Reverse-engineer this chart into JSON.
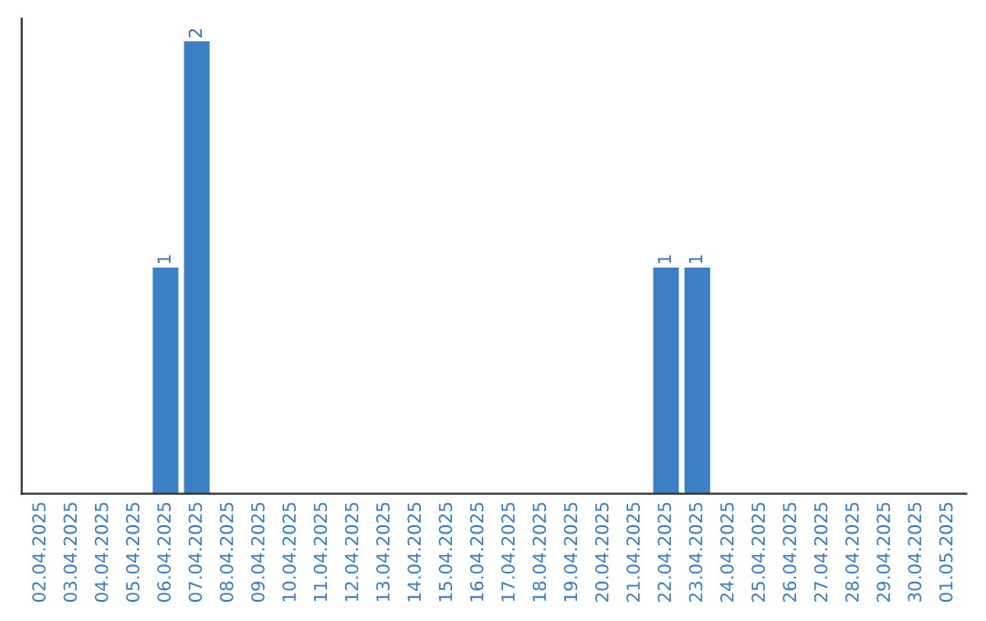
{
  "chart_data": {
    "type": "bar",
    "categories": [
      "02.04.2025",
      "03.04.2025",
      "04.04.2025",
      "05.04.2025",
      "06.04.2025",
      "07.04.2025",
      "08.04.2025",
      "09.04.2025",
      "10.04.2025",
      "11.04.2025",
      "12.04.2025",
      "13.04.2025",
      "14.04.2025",
      "15.04.2025",
      "16.04.2025",
      "17.04.2025",
      "18.04.2025",
      "19.04.2025",
      "20.04.2025",
      "21.04.2025",
      "22.04.2025",
      "23.04.2025",
      "24.04.2025",
      "25.04.2025",
      "26.04.2025",
      "27.04.2025",
      "28.04.2025",
      "29.04.2025",
      "30.04.2025",
      "01.05.2025"
    ],
    "values": [
      0,
      0,
      0,
      0,
      1,
      2,
      0,
      0,
      0,
      0,
      0,
      0,
      0,
      0,
      0,
      0,
      0,
      0,
      0,
      0,
      1,
      1,
      0,
      0,
      0,
      0,
      0,
      0,
      0,
      0
    ],
    "value_labels": [
      null,
      null,
      null,
      null,
      "1",
      "2",
      null,
      null,
      null,
      null,
      null,
      null,
      null,
      null,
      null,
      null,
      null,
      null,
      null,
      null,
      "1",
      "1",
      null,
      null,
      null,
      null,
      null,
      null,
      null,
      null
    ],
    "color": "#3c7fc4",
    "tick_labels": "x",
    "grid": false,
    "legend": false
  }
}
